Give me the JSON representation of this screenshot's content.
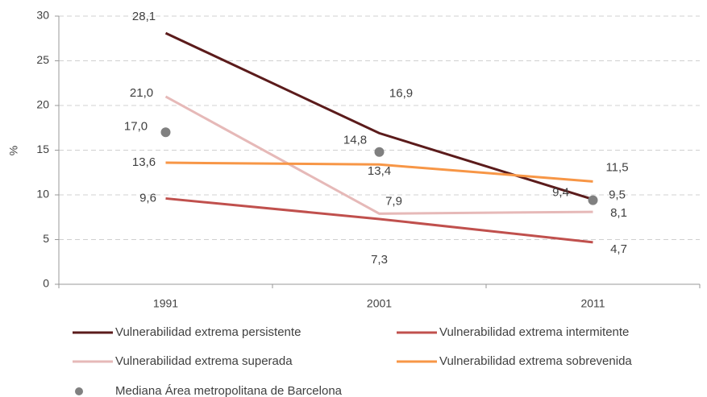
{
  "chart_data": {
    "type": "line",
    "y_label": "%",
    "categories": [
      "1991",
      "2001",
      "2011"
    ],
    "ylim": [
      0,
      30
    ],
    "yticks": [
      0,
      5,
      10,
      15,
      20,
      25,
      30
    ],
    "grid": true,
    "series": [
      {
        "name": "Vulnerabilidad extrema persistente",
        "color": "#5b1b1b",
        "values": [
          28.1,
          16.9,
          9.5
        ],
        "value_labels": [
          "28,1",
          "16,9",
          "9,5"
        ]
      },
      {
        "name": "Vulnerabilidad extrema intermitente",
        "color": "#c0504d",
        "values": [
          9.6,
          7.3,
          4.7
        ],
        "value_labels": [
          "9,6",
          "7,3",
          "4,7"
        ]
      },
      {
        "name": "Vulnerabilidad extrema superada",
        "color": "#e6b9b8",
        "values": [
          21.0,
          7.9,
          8.1
        ],
        "value_labels": [
          "21,0",
          "7,9",
          "8,1"
        ]
      },
      {
        "name": "Vulnerabilidad extrema sobrevenida",
        "color": "#f79646",
        "values": [
          13.6,
          13.4,
          11.5
        ],
        "value_labels": [
          "13,6",
          "13,4",
          "11,5"
        ]
      },
      {
        "name": "Mediana Área metropolitana de Barcelona",
        "type": "scatter",
        "color": "#808080",
        "values": [
          17.0,
          14.8,
          9.4
        ],
        "value_labels": [
          "17,0",
          "14,8",
          "9,4"
        ]
      }
    ]
  }
}
